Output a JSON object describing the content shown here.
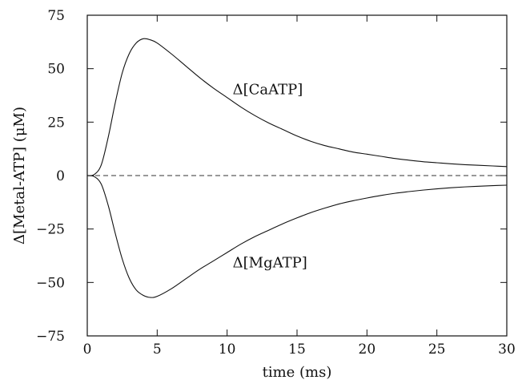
{
  "chart_data": {
    "type": "line",
    "xlabel": "time (ms)",
    "ylabel": "Δ[Metal-ATP] (μM)",
    "xlim": [
      0,
      30
    ],
    "ylim": [
      -75,
      75
    ],
    "x_ticks": [
      0,
      5,
      10,
      15,
      20,
      25,
      30
    ],
    "y_ticks": [
      75,
      50,
      25,
      0,
      -25,
      -50,
      -75
    ],
    "y_tick_labels": [
      "75",
      "50",
      "25",
      "0",
      "−25",
      "−50",
      "−75"
    ],
    "grid": false,
    "zero_line": {
      "y": 0,
      "style": "dashed"
    },
    "series": [
      {
        "name": "Δ[CaATP]",
        "x": [
          0,
          0.5,
          1,
          1.5,
          2,
          2.5,
          3,
          3.5,
          4,
          4.5,
          5,
          6,
          7,
          8,
          9,
          10,
          11,
          12,
          13,
          14,
          15,
          16,
          17,
          18,
          19,
          20,
          21,
          22,
          23,
          24,
          25,
          26,
          27,
          28,
          29,
          30
        ],
        "values": [
          0,
          0.5,
          5,
          18,
          34,
          48,
          57,
          62,
          64,
          63.5,
          62,
          57,
          51.5,
          46,
          41,
          36.5,
          32,
          28,
          24.5,
          21.5,
          18.5,
          16,
          14,
          12.5,
          11,
          10,
          9,
          8,
          7.2,
          6.5,
          6,
          5.5,
          5.1,
          4.8,
          4.5,
          4.2
        ]
      },
      {
        "name": "Δ[MgATP]",
        "x": [
          0,
          0.5,
          1,
          1.5,
          2,
          2.5,
          3,
          3.5,
          4,
          4.5,
          5,
          6,
          7,
          8,
          9,
          10,
          11,
          12,
          13,
          14,
          15,
          16,
          17,
          18,
          19,
          20,
          21,
          22,
          23,
          24,
          25,
          26,
          27,
          28,
          29,
          30
        ],
        "values": [
          0,
          -0.5,
          -4,
          -14,
          -27,
          -39,
          -48,
          -53.5,
          -56,
          -57,
          -56.5,
          -53,
          -48.5,
          -44,
          -40,
          -36,
          -32,
          -28.5,
          -25.5,
          -22.5,
          -19.8,
          -17.3,
          -15.2,
          -13.3,
          -11.8,
          -10.5,
          -9.3,
          -8.3,
          -7.5,
          -6.8,
          -6.2,
          -5.7,
          -5.3,
          -5,
          -4.7,
          -4.5
        ]
      }
    ],
    "annotations": [
      {
        "text": "Δ[CaATP]",
        "x": 10.4,
        "y": 38
      },
      {
        "text": "Δ[MgATP]",
        "x": 10.4,
        "y": -43
      }
    ]
  }
}
